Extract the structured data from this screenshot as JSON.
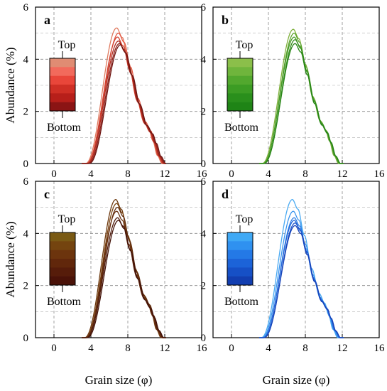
{
  "chart_data": [
    {
      "type": "line",
      "panel_label": "a",
      "xlabel": "",
      "ylabel": "Abundance (%)",
      "xlim": [
        -2,
        16
      ],
      "ylim": [
        0,
        6
      ],
      "xticks": [
        "0",
        "4",
        "8",
        "12",
        "16"
      ],
      "yticks": [
        "0",
        "2",
        "4",
        "6"
      ],
      "grid": true,
      "legend": {
        "position": "left",
        "top": "Top",
        "bottom": "Bottom",
        "colors": [
          "#e08c73",
          "#f26a5c",
          "#e9463a",
          "#cf2f25",
          "#b71f1a",
          "#8b1414"
        ]
      },
      "series": [
        {
          "color": "#e07a5f",
          "peak_x": 6.8,
          "peak": 5.2
        },
        {
          "color": "#e55a45",
          "peak_x": 7.0,
          "peak": 5.0
        },
        {
          "color": "#d04030",
          "peak_x": 6.9,
          "peak": 4.85
        },
        {
          "color": "#b02c20",
          "peak_x": 7.0,
          "peak": 4.7
        },
        {
          "color": "#8f1f18",
          "peak_x": 7.1,
          "peak": 4.6
        },
        {
          "color": "#6e1410",
          "peak_x": 7.2,
          "peak": 4.55
        }
      ]
    },
    {
      "type": "line",
      "panel_label": "b",
      "xlabel": "",
      "ylabel": "",
      "xlim": [
        -2,
        16
      ],
      "ylim": [
        0,
        6
      ],
      "xticks": [
        "0",
        "4",
        "8",
        "12",
        "16"
      ],
      "yticks": [
        "0",
        "2",
        "4",
        "6"
      ],
      "grid": true,
      "legend": {
        "position": "left",
        "top": "Top",
        "bottom": "Bottom",
        "colors": [
          "#8bbf4a",
          "#6fb53c",
          "#52a82e",
          "#3c9c24",
          "#2a8f1c",
          "#1f8416"
        ]
      },
      "series": [
        {
          "color": "#7fb03c",
          "peak_x": 6.7,
          "peak": 5.15
        },
        {
          "color": "#5ea52e",
          "peak_x": 6.8,
          "peak": 5.0
        },
        {
          "color": "#459a24",
          "peak_x": 6.8,
          "peak": 4.85
        },
        {
          "color": "#348f1c",
          "peak_x": 6.9,
          "peak": 4.75
        },
        {
          "color": "#278516",
          "peak_x": 6.9,
          "peak": 4.6
        }
      ]
    },
    {
      "type": "line",
      "panel_label": "c",
      "xlabel": "Grain size (φ)",
      "ylabel": "Abundance (%)",
      "xlim": [
        -2,
        16
      ],
      "ylim": [
        0,
        6
      ],
      "xticks": [
        "0",
        "4",
        "8",
        "12",
        "16"
      ],
      "yticks": [
        "0",
        "2",
        "4",
        "6"
      ],
      "grid": true,
      "legend": {
        "position": "left",
        "top": "Top",
        "bottom": "Bottom",
        "colors": [
          "#7a5a14",
          "#74440f",
          "#6c340d",
          "#61270b",
          "#561c0a",
          "#4a1208"
        ]
      },
      "series": [
        {
          "color": "#6e3a10",
          "peak_x": 6.7,
          "peak": 5.3
        },
        {
          "color": "#7a4410",
          "peak_x": 6.8,
          "peak": 5.15
        },
        {
          "color": "#5e2a0c",
          "peak_x": 6.9,
          "peak": 5.0
        },
        {
          "color": "#6a3010",
          "peak_x": 6.8,
          "peak": 4.85
        },
        {
          "color": "#4f1a0a",
          "peak_x": 6.9,
          "peak": 4.6
        },
        {
          "color": "#431208",
          "peak_x": 7.0,
          "peak": 4.5
        }
      ]
    },
    {
      "type": "line",
      "panel_label": "d",
      "xlabel": "Grain size (φ)",
      "ylabel": "",
      "xlim": [
        -2,
        16
      ],
      "ylim": [
        0,
        6
      ],
      "xticks": [
        "0",
        "4",
        "8",
        "12",
        "16"
      ],
      "yticks": [
        "0",
        "2",
        "4",
        "6"
      ],
      "grid": true,
      "legend": {
        "position": "left",
        "top": "Top",
        "bottom": "Bottom",
        "colors": [
          "#3fa9f5",
          "#2f91f0",
          "#2479e6",
          "#1c63d8",
          "#1650c6",
          "#123eb0"
        ]
      },
      "series": [
        {
          "color": "#4aaaf2",
          "peak_x": 6.6,
          "peak": 5.3
        },
        {
          "color": "#3a95ee",
          "peak_x": 6.7,
          "peak": 4.85
        },
        {
          "color": "#2e7fe6",
          "peak_x": 6.8,
          "peak": 4.6
        },
        {
          "color": "#2468da",
          "peak_x": 6.8,
          "peak": 4.5
        },
        {
          "color": "#1c55cc",
          "peak_x": 6.9,
          "peak": 4.4
        },
        {
          "color": "#1642b8",
          "peak_x": 6.9,
          "peak": 4.3
        }
      ]
    }
  ]
}
